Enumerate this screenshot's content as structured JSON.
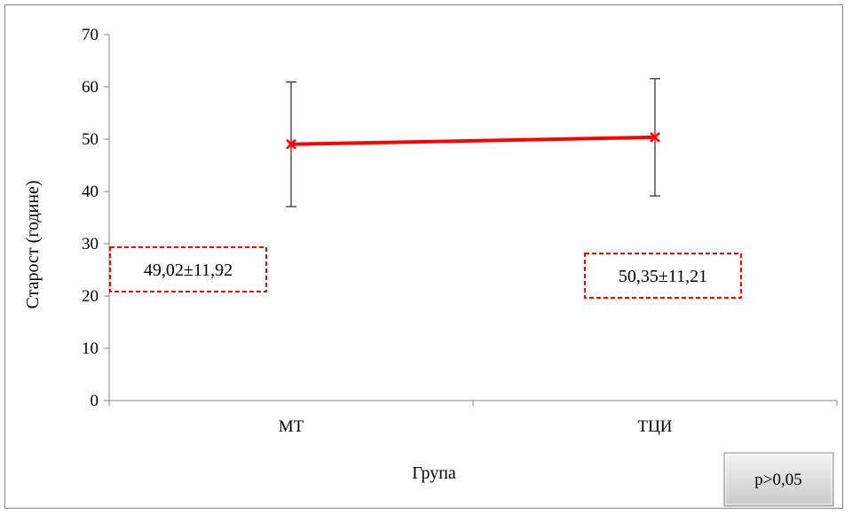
{
  "chart_data": {
    "type": "line",
    "categories": [
      "МТ",
      "ТЦИ"
    ],
    "series": [
      {
        "values": [
          49.02,
          50.35
        ],
        "error": [
          11.92,
          11.21
        ]
      }
    ],
    "xlabel": "Група",
    "ylabel": "Старост (године)",
    "ylim": [
      0,
      70
    ],
    "yticks": [
      0,
      10,
      20,
      30,
      40,
      50,
      60,
      70
    ],
    "data_labels": [
      "49,02±11,92",
      "50,35±11,21"
    ],
    "annotation": "p>0,05",
    "grid": false,
    "legend": "none",
    "line_color": "#ff0000",
    "label_border_color": "#ff0000"
  }
}
